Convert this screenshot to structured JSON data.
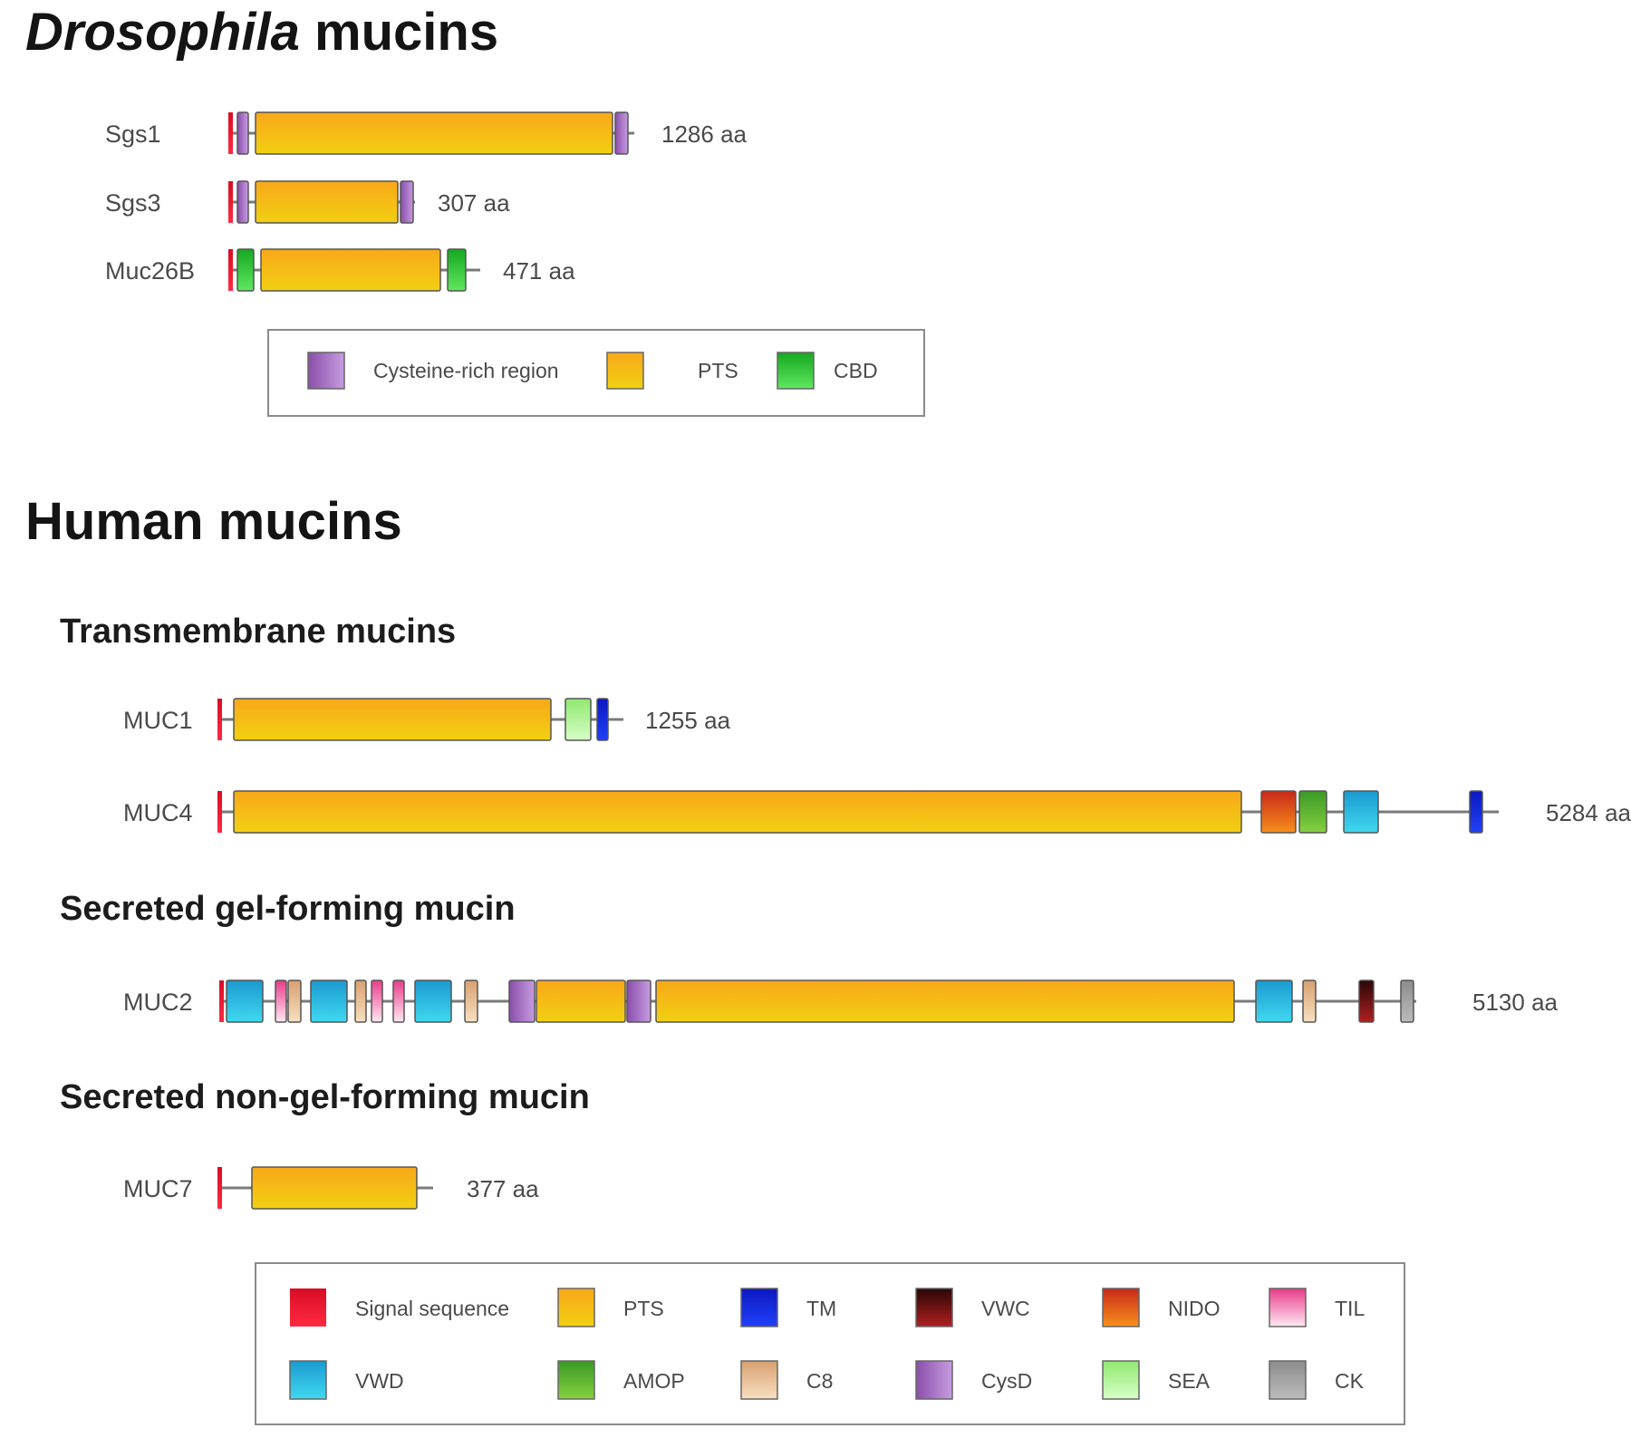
{
  "drosophila": {
    "title_italic": "Drosophila",
    "title_rest": " mucins",
    "proteins": [
      {
        "name": "Sgs1",
        "length": "1286 aa"
      },
      {
        "name": "Sgs3",
        "length": "307 aa"
      },
      {
        "name": "Muc26B",
        "length": "471 aa"
      }
    ],
    "legend": [
      {
        "label": "Cysteine-rich region",
        "color": "#9a62b8"
      },
      {
        "label": "PTS",
        "color": "#f4b21a"
      },
      {
        "label": "CBD",
        "color": "#22c02a"
      }
    ]
  },
  "human": {
    "title": "Human mucins",
    "sections": [
      {
        "title": "Transmembrane mucins"
      },
      {
        "title": "Secreted gel-forming mucin"
      },
      {
        "title": "Secreted non-gel-forming mucin"
      }
    ],
    "proteins": [
      {
        "name": "MUC1",
        "length": "1255 aa"
      },
      {
        "name": "MUC4",
        "length": "5284 aa"
      },
      {
        "name": "MUC2",
        "length": "5130 aa"
      },
      {
        "name": "MUC7",
        "length": "377 aa"
      }
    ],
    "legend": [
      {
        "label": "Signal sequence",
        "color": "#e8112d"
      },
      {
        "label": "PTS",
        "color": "#f4b21a"
      },
      {
        "label": "TM",
        "color": "#1020e0"
      },
      {
        "label": "VWC",
        "color": "#5a0c0c"
      },
      {
        "label": "NIDO",
        "color": "#e0501a"
      },
      {
        "label": "TIL",
        "color": "#f070a8"
      },
      {
        "label": "VWD",
        "color": "#20b0d8"
      },
      {
        "label": "AMOP",
        "color": "#5aa830"
      },
      {
        "label": "C8",
        "color": "#e0b080"
      },
      {
        "label": "CysD",
        "color": "#9a62b8"
      },
      {
        "label": "SEA",
        "color": "#a8f080"
      },
      {
        "label": "CK",
        "color": "#a0a0a0"
      }
    ]
  }
}
